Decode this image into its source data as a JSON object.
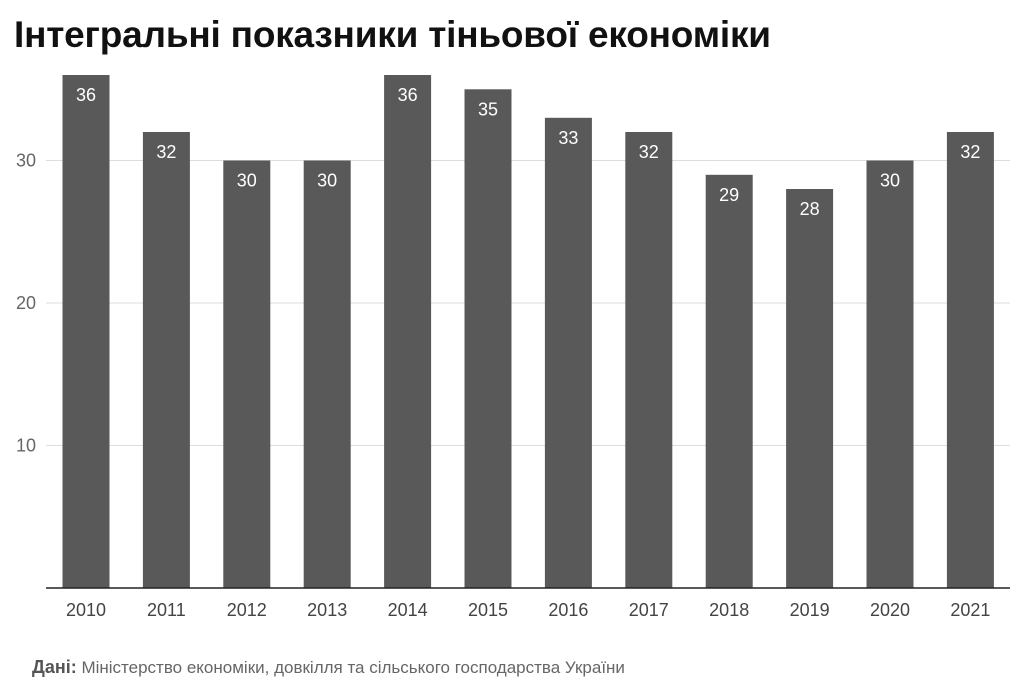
{
  "title": "Інтегральні показники тіньової економіки",
  "source": {
    "label": "Дані:",
    "text": "Міністерство економіки, довкілля та сільського господарства України"
  },
  "colors": {
    "bar": "#595959",
    "grid": "#dddddd",
    "axis": "#222222",
    "tick_text": "#666666",
    "bar_label": "#ffffff"
  },
  "chart_data": {
    "type": "bar",
    "title": "Інтегральні показники тіньової економіки",
    "xlabel": "",
    "ylabel": "",
    "categories": [
      "2010",
      "2011",
      "2012",
      "2013",
      "2014",
      "2015",
      "2016",
      "2017",
      "2018",
      "2019",
      "2020",
      "2021"
    ],
    "values": [
      36,
      32,
      30,
      30,
      36,
      35,
      33,
      32,
      29,
      28,
      30,
      32
    ],
    "ylim": [
      0,
      36
    ],
    "y_ticks": [
      10,
      20,
      30
    ],
    "grid": true,
    "data_labels": true,
    "legend": "none"
  }
}
